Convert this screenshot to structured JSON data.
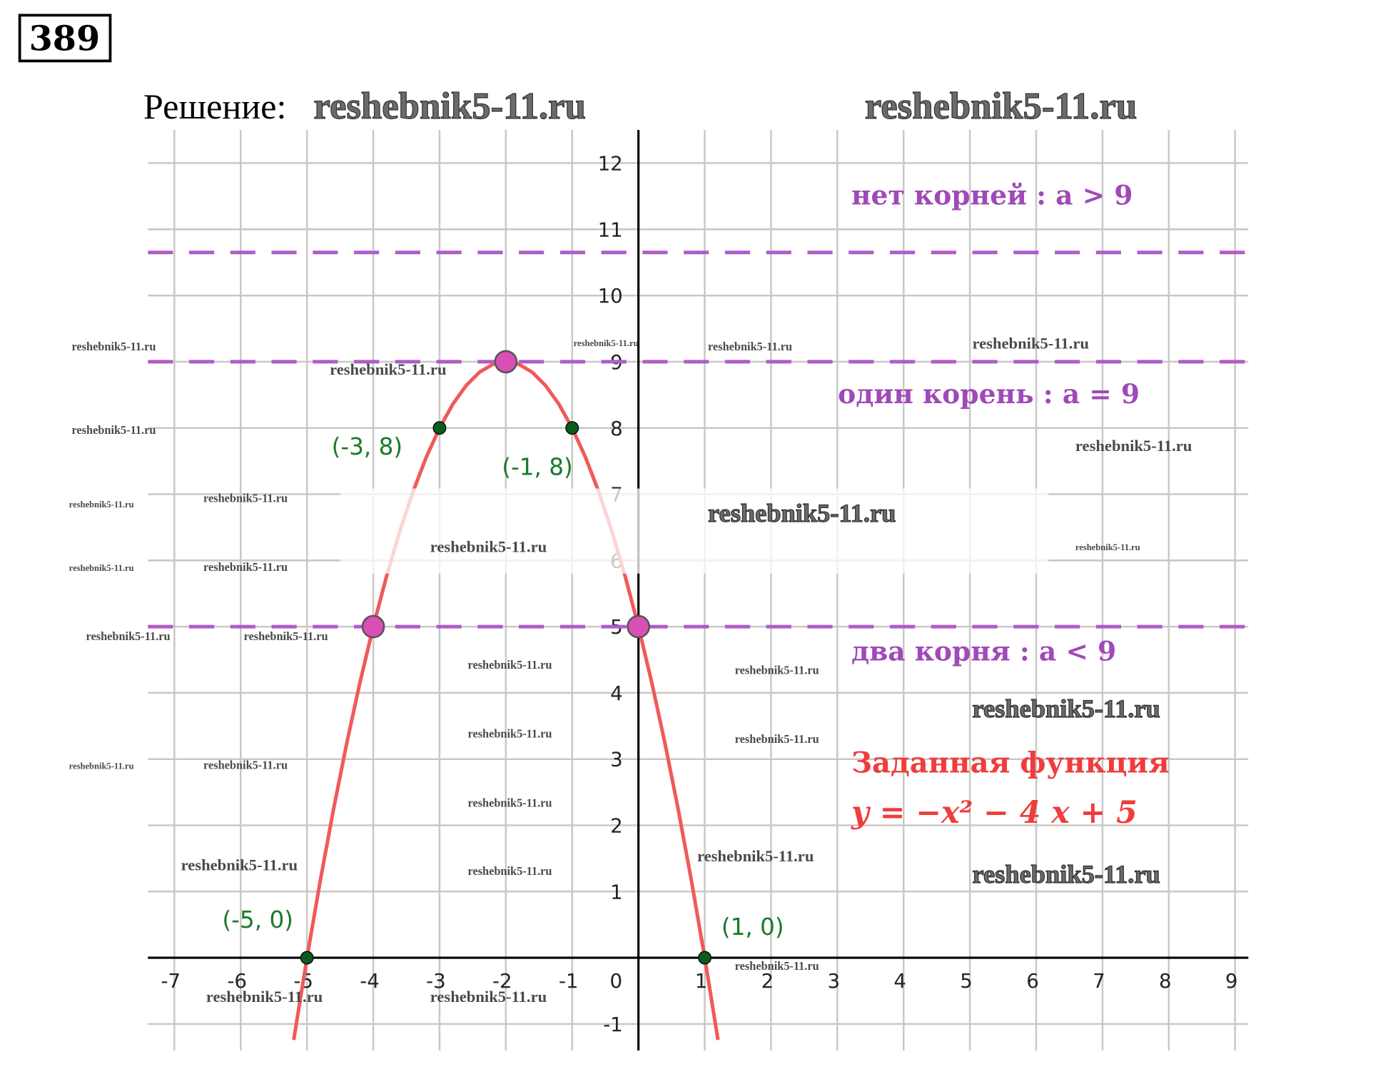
{
  "header": {
    "number": "389",
    "solution_label": "Решение:"
  },
  "watermarks": [
    "reshebnik5-11.ru",
    "reshebnik5-11.ru",
    "reshebnik5-11.ru",
    "reshebnik5-11.ru",
    "reshebnik5-11.ru",
    "reshebnik5-11.ru",
    "reshebnik5-11.ru",
    "reshebnik5-11.ru",
    "reshebnik5-11.ru",
    "reshebnik5-11.ru",
    "reshebnik5-11.ru",
    "reshebnik5-11.ru",
    "reshebnik5-11.ru",
    "reshebnik5-11.ru",
    "reshebnik5-11.ru",
    "reshebnik5-11.ru",
    "reshebnik5-11.ru",
    "reshebnik5-11.ru",
    "reshebnik5-11.ru",
    "reshebnik5-11.ru",
    "reshebnik5-11.ru",
    "reshebnik5-11.ru",
    "reshebnik5-11.ru",
    "reshebnik5-11.ru",
    "reshebnik5-11.ru",
    "reshebnik5-11.ru",
    "reshebnik5-11.ru",
    "reshebnik5-11.ru",
    "reshebnik5-11.ru",
    "reshebnik5-11.ru",
    "reshebnik5-11.ru",
    "reshebnik5-11.ru",
    "reshebnik5-11.ru"
  ],
  "chart_data": {
    "type": "line",
    "xlim": [
      -7.4,
      9.2
    ],
    "ylim": [
      -1.4,
      12.5
    ],
    "xticks": [
      -7,
      -6,
      -5,
      -4,
      -3,
      -2,
      -1,
      0,
      1,
      2,
      3,
      4,
      5,
      6,
      7,
      8,
      9
    ],
    "yticks": [
      -1,
      1,
      2,
      3,
      4,
      5,
      6,
      7,
      8,
      9,
      10,
      11,
      12
    ],
    "grid": true,
    "curve": {
      "color": "#f05a5a",
      "x": [
        -5.2,
        -5,
        -4.8,
        -4.6,
        -4.4,
        -4.2,
        -4,
        -3.8,
        -3.6,
        -3.4,
        -3.2,
        -3,
        -2.8,
        -2.6,
        -2.4,
        -2.2,
        -2,
        -1.8,
        -1.6,
        -1.4,
        -1.2,
        -1,
        -0.8,
        -0.6,
        -0.4,
        -0.2,
        0,
        0.2,
        0.4,
        0.6,
        0.8,
        1,
        1.2
      ],
      "values": [
        -1.24,
        0,
        1.16,
        2.24,
        3.24,
        4.16,
        5,
        5.76,
        6.44,
        7.04,
        7.56,
        8,
        8.36,
        8.64,
        8.84,
        8.96,
        9,
        8.96,
        8.84,
        8.64,
        8.36,
        8,
        7.56,
        7.04,
        6.44,
        5.76,
        5,
        4.16,
        3.24,
        2.24,
        1.16,
        0,
        -1.24
      ]
    },
    "hlines": {
      "color": "#b05cc8",
      "values": [
        10.65,
        9,
        5
      ]
    },
    "points": [
      {
        "color": "#0b5a1e",
        "x": [
          -3,
          -1,
          -5,
          1
        ],
        "values": [
          8,
          8,
          0,
          0
        ],
        "labels": [
          "(-3, 8)",
          "(-1, 8)",
          "(-5, 0)",
          "(1, 0)"
        ],
        "label_color": "#1a7a2a"
      },
      {
        "color": "#d94fb5",
        "x": [
          -2,
          -4,
          0
        ],
        "values": [
          9,
          5,
          5
        ]
      }
    ],
    "annotations": [
      {
        "text": "нет корней :  a > 9",
        "color": "#a049b8"
      },
      {
        "text": "один корень :  a = 9",
        "color": "#a049b8"
      },
      {
        "text": "два корня :  a < 9",
        "color": "#a049b8"
      },
      {
        "text": "Заданная функция",
        "color": "#f03c3c"
      },
      {
        "text": "y = −x² − 4 x + 5",
        "color": "#f03c3c"
      }
    ]
  }
}
